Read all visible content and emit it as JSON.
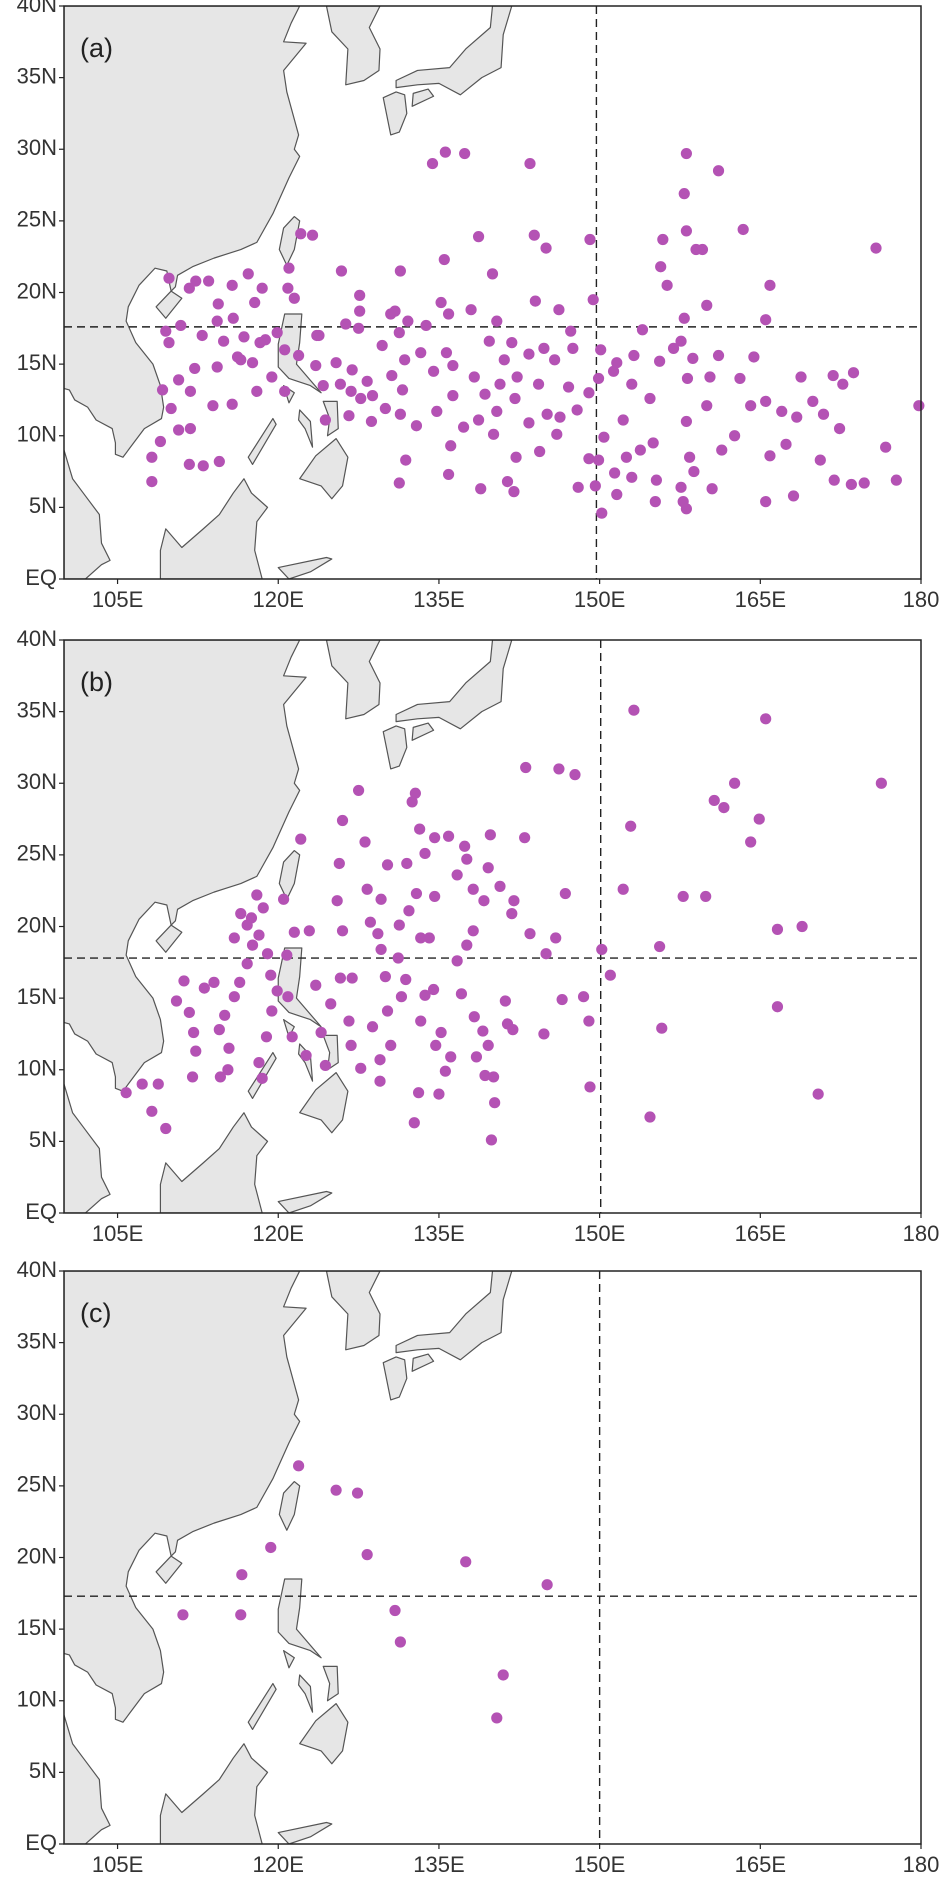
{
  "chart_data": [
    {
      "type": "scatter",
      "title": "(a)",
      "color": "#b452b4",
      "xlim": [
        100,
        180
      ],
      "ylim": [
        0,
        40
      ],
      "xticks": [
        {
          "value": 105,
          "label": "105E"
        },
        {
          "value": 120,
          "label": "120E"
        },
        {
          "value": 135,
          "label": "135E"
        },
        {
          "value": 150,
          "label": "150E"
        },
        {
          "value": 165,
          "label": "165E"
        },
        180
      ],
      "yticks": [
        {
          "value": 0,
          "label": "EQ"
        },
        {
          "value": 5,
          "label": "5N"
        },
        {
          "value": 10,
          "label": "10N"
        },
        {
          "value": 15,
          "label": "15N"
        },
        {
          "value": 20,
          "label": "20N"
        },
        {
          "value": 25,
          "label": "25N"
        },
        {
          "value": 30,
          "label": "30N"
        },
        {
          "value": 35,
          "label": "35N"
        },
        {
          "value": 40,
          "label": "40N"
        }
      ],
      "hline": 17.6,
      "vline": 149.7,
      "x": [
        108.2,
        108.2,
        109.0,
        110.7,
        111.8,
        111.7,
        113.0,
        114.5,
        110.0,
        109.2,
        111.8,
        113.9,
        115.7,
        118.0,
        120.6,
        119.4,
        117.6,
        116.2,
        114.3,
        112.2,
        110.7,
        109.8,
        109.5,
        110.9,
        112.9,
        114.9,
        116.8,
        118.8,
        120.6,
        121.9,
        123.5,
        125.4,
        126.9,
        128.3,
        130.6,
        131.6,
        130.0,
        131.4,
        128.7,
        126.6,
        124.4,
        126.8,
        128.8,
        125.8,
        124.2,
        123.6,
        126.3,
        127.6,
        130.5,
        132.1,
        133.8,
        135.9,
        138.0,
        135.2,
        131.3,
        129.7,
        131.8,
        133.3,
        135.7,
        134.5,
        136.3,
        138.3,
        136.3,
        134.8,
        132.9,
        131.9,
        131.3,
        136.1,
        135.9,
        138.7,
        139.3,
        140.7,
        141.1,
        139.7,
        140.4,
        141.8,
        143.4,
        144.8,
        145.8,
        144.3,
        142.1,
        140.4,
        140.1,
        138.9,
        141.4,
        142.2,
        143.4,
        145.1,
        147.1,
        147.9,
        146.0,
        149.0,
        149.9,
        151.6,
        153.2,
        155.6,
        156.9,
        153.0,
        154.7,
        152.2,
        150.4,
        149.0,
        148.0,
        149.6,
        150.2,
        151.6,
        153.0,
        152.5,
        155.0,
        155.3,
        155.2,
        157.6,
        158.4,
        158.1,
        160.0,
        158.2,
        160.3,
        157.6,
        158.7,
        161.1,
        163.1,
        164.4,
        164.1,
        162.6,
        161.4,
        160.5,
        157.8,
        165.5,
        167.0,
        165.9,
        167.4,
        168.4,
        169.9,
        170.9,
        171.8,
        173.7,
        172.4,
        170.6,
        171.9,
        173.5,
        174.7,
        176.7,
        177.7,
        179.8,
        172.7,
        168.8,
        168.1,
        165.5,
        158.8,
        160.0,
        165.5,
        157.9,
        156.3,
        155.7,
        155.9,
        158.1,
        159.0,
        159.6,
        157.9,
        158.1,
        161.1,
        163.4,
        165.9,
        175.8,
        154.0,
        150.1,
        147.3,
        146.2,
        144.0,
        140.0,
        138.7,
        135.5,
        131.4,
        130.9,
        127.6,
        125.9,
        123.2,
        122.1,
        121.0,
        120.9,
        118.5,
        117.2,
        115.7,
        113.5,
        112.3,
        117.8,
        114.4,
        115.8,
        114.3,
        111.7,
        109.8,
        135.6,
        137.4,
        134.4,
        143.5,
        143.9,
        145.0,
        149.1,
        149.4,
        147.5,
        142.3,
        137.3,
        144.4,
        146.3,
        142.0,
        149.9,
        151.3,
        153.8,
        151.4,
        127.7,
        127.5,
        123.8,
        121.5,
        116.5,
        118.3,
        119.9,
        158.1
      ],
      "y": [
        6.8,
        8.5,
        9.6,
        10.4,
        10.5,
        8.0,
        7.9,
        8.2,
        11.9,
        13.2,
        13.1,
        12.1,
        12.2,
        13.1,
        13.1,
        14.1,
        15.1,
        15.5,
        14.8,
        14.7,
        13.9,
        16.5,
        17.3,
        17.7,
        17.0,
        16.6,
        16.9,
        16.7,
        16.0,
        15.6,
        14.9,
        15.1,
        14.6,
        13.8,
        14.2,
        13.2,
        11.9,
        11.5,
        11.0,
        11.4,
        11.1,
        13.1,
        12.8,
        13.6,
        13.5,
        17.0,
        17.8,
        18.7,
        18.5,
        18.0,
        17.7,
        18.5,
        18.8,
        19.3,
        17.2,
        16.3,
        15.3,
        15.8,
        15.8,
        14.5,
        14.9,
        14.1,
        12.8,
        11.7,
        10.7,
        8.3,
        6.7,
        9.3,
        7.3,
        11.1,
        12.9,
        13.6,
        15.3,
        16.6,
        18.0,
        16.5,
        15.7,
        16.1,
        15.3,
        13.6,
        12.6,
        11.7,
        10.1,
        6.3,
        6.8,
        8.5,
        10.9,
        11.5,
        13.4,
        11.8,
        10.1,
        13.0,
        14.0,
        15.1,
        15.6,
        15.2,
        16.1,
        13.6,
        12.6,
        11.1,
        9.9,
        8.4,
        6.4,
        6.5,
        4.6,
        5.9,
        7.1,
        8.5,
        9.5,
        6.9,
        5.4,
        6.4,
        8.5,
        11.0,
        12.1,
        14.0,
        14.1,
        16.6,
        15.4,
        15.6,
        14.0,
        15.5,
        12.1,
        10.0,
        9.0,
        6.3,
        5.4,
        12.4,
        11.7,
        8.6,
        9.4,
        11.3,
        12.4,
        11.5,
        14.2,
        14.4,
        10.5,
        8.3,
        6.9,
        6.6,
        6.7,
        9.2,
        6.9,
        12.1,
        13.6,
        14.1,
        5.8,
        5.4,
        7.5,
        19.1,
        18.1,
        18.2,
        20.5,
        21.8,
        23.7,
        24.3,
        23.0,
        23.0,
        26.9,
        29.7,
        28.5,
        24.4,
        20.5,
        23.1,
        17.4,
        16.0,
        17.3,
        18.8,
        19.4,
        21.3,
        23.9,
        22.3,
        21.5,
        18.7,
        19.8,
        21.5,
        24.0,
        24.1,
        21.7,
        20.3,
        20.3,
        21.3,
        20.5,
        20.8,
        20.8,
        19.3,
        19.2,
        18.2,
        18.0,
        20.3,
        21.0,
        29.8,
        29.7,
        29.0,
        29.0,
        24.0,
        23.1,
        23.7,
        19.5,
        16.1,
        14.1,
        10.6,
        8.9,
        11.3,
        6.1,
        8.3,
        14.5,
        9.0,
        7.4,
        12.6,
        17.5,
        17.0,
        19.6,
        15.3,
        16.5,
        17.2,
        4.9
      ]
    },
    {
      "type": "scatter",
      "title": "(b)",
      "color": "#b452b4",
      "xlim": [
        100,
        180
      ],
      "ylim": [
        0,
        40
      ],
      "xticks": [
        {
          "value": 105,
          "label": "105E"
        },
        {
          "value": 120,
          "label": "120E"
        },
        {
          "value": 135,
          "label": "135E"
        },
        {
          "value": 150,
          "label": "150E"
        },
        {
          "value": 165,
          "label": "165E"
        },
        180
      ],
      "yticks": [
        {
          "value": 0,
          "label": "EQ"
        },
        {
          "value": 5,
          "label": "5N"
        },
        {
          "value": 10,
          "label": "10N"
        },
        {
          "value": 15,
          "label": "15N"
        },
        {
          "value": 20,
          "label": "20N"
        },
        {
          "value": 25,
          "label": "25N"
        },
        {
          "value": 30,
          "label": "30N"
        },
        {
          "value": 35,
          "label": "35N"
        },
        {
          "value": 40,
          "label": "40N"
        }
      ],
      "hline": 17.8,
      "vline": 150.1,
      "x": [
        105.8,
        107.3,
        108.8,
        108.2,
        109.5,
        110.5,
        111.2,
        111.7,
        112.1,
        112.3,
        112.0,
        113.1,
        114.0,
        114.5,
        114.6,
        115.3,
        115.4,
        115.0,
        115.9,
        116.4,
        117.1,
        117.6,
        118.2,
        118.6,
        118.0,
        117.1,
        115.9,
        116.5,
        117.5,
        119.0,
        119.3,
        119.4,
        118.9,
        118.2,
        118.5,
        119.9,
        120.8,
        121.5,
        122.9,
        120.5,
        122.1,
        120.9,
        121.3,
        122.6,
        123.5,
        124.0,
        124.4,
        124.9,
        125.8,
        126.9,
        126.6,
        126.8,
        127.7,
        126.0,
        125.5,
        125.7,
        126.0,
        127.5,
        128.1,
        128.3,
        128.6,
        129.6,
        130.0,
        128.8,
        129.5,
        129.5,
        130.2,
        130.5,
        131.5,
        131.9,
        131.2,
        131.3,
        132.2,
        132.9,
        133.2,
        132.0,
        130.2,
        129.6,
        129.3,
        132.8,
        132.5,
        133.7,
        134.6,
        134.6,
        133.3,
        134.1,
        134.5,
        133.7,
        133.3,
        134.7,
        135.2,
        135.6,
        136.1,
        135.0,
        133.1,
        132.7,
        135.9,
        137.4,
        137.6,
        136.7,
        138.2,
        139.2,
        138.2,
        137.6,
        136.7,
        137.1,
        138.3,
        139.1,
        139.6,
        138.5,
        139.3,
        140.1,
        139.9,
        140.2,
        141.2,
        141.4,
        141.9,
        139.6,
        140.7,
        142.0,
        139.8,
        143.0,
        143.5,
        143.1,
        146.2,
        147.7,
        146.8,
        145.0,
        144.8,
        146.5,
        148.5,
        149.0,
        149.1,
        150.2,
        151.0,
        152.2,
        152.9,
        153.2,
        155.8,
        154.7,
        155.6,
        157.8,
        159.9,
        160.7,
        161.6,
        162.6,
        164.9,
        164.1,
        165.5,
        166.6,
        166.6,
        168.9,
        170.4,
        176.3,
        145.9,
        141.8
      ],
      "y": [
        8.4,
        9.0,
        9.0,
        7.1,
        5.9,
        14.8,
        16.2,
        14.0,
        12.6,
        11.3,
        9.5,
        15.7,
        16.1,
        12.8,
        9.5,
        10.0,
        11.5,
        13.8,
        15.1,
        16.1,
        17.4,
        18.7,
        19.4,
        21.3,
        22.2,
        20.1,
        19.2,
        20.9,
        20.6,
        18.1,
        16.6,
        14.1,
        12.3,
        10.5,
        9.4,
        15.5,
        18.0,
        19.6,
        19.7,
        21.9,
        26.1,
        15.1,
        12.3,
        11.0,
        15.9,
        12.6,
        10.3,
        14.6,
        16.4,
        16.4,
        13.4,
        11.7,
        10.1,
        19.7,
        21.8,
        24.4,
        27.4,
        29.5,
        25.9,
        22.6,
        20.3,
        18.4,
        16.5,
        13.0,
        10.7,
        9.2,
        14.1,
        11.7,
        15.1,
        16.3,
        17.8,
        20.1,
        21.1,
        22.3,
        26.8,
        24.4,
        24.3,
        21.9,
        19.5,
        29.3,
        28.7,
        25.1,
        26.2,
        22.1,
        19.2,
        19.2,
        15.6,
        15.2,
        13.4,
        11.7,
        12.6,
        9.9,
        10.9,
        8.3,
        8.4,
        6.3,
        26.3,
        25.6,
        24.7,
        23.6,
        22.6,
        21.8,
        19.7,
        18.7,
        17.6,
        15.3,
        13.7,
        12.7,
        11.7,
        10.9,
        9.6,
        9.5,
        5.1,
        7.7,
        14.8,
        13.2,
        12.8,
        24.1,
        22.8,
        21.8,
        26.4,
        26.2,
        19.5,
        31.1,
        31.0,
        30.6,
        22.3,
        18.1,
        12.5,
        14.9,
        15.1,
        13.4,
        8.8,
        18.4,
        16.6,
        22.6,
        27.0,
        35.1,
        12.9,
        6.7,
        18.6,
        22.1,
        22.1,
        28.8,
        28.3,
        30.0,
        27.5,
        25.9,
        34.5,
        19.8,
        14.4,
        20.0,
        8.3,
        30.0,
        19.2,
        20.9
      ]
    },
    {
      "type": "scatter",
      "title": "(c)",
      "color": "#b452b4",
      "xlim": [
        100,
        180
      ],
      "ylim": [
        0,
        40
      ],
      "xticks": [
        {
          "value": 105,
          "label": "105E"
        },
        {
          "value": 120,
          "label": "120E"
        },
        {
          "value": 135,
          "label": "135E"
        },
        {
          "value": 150,
          "label": "150E"
        },
        {
          "value": 165,
          "label": "165E"
        },
        180
      ],
      "yticks": [
        {
          "value": 0,
          "label": "EQ"
        },
        {
          "value": 5,
          "label": "5N"
        },
        {
          "value": 10,
          "label": "10N"
        },
        {
          "value": 15,
          "label": "15N"
        },
        {
          "value": 20,
          "label": "20N"
        },
        {
          "value": 25,
          "label": "25N"
        },
        {
          "value": 30,
          "label": "30N"
        },
        {
          "value": 35,
          "label": "35N"
        },
        {
          "value": 40,
          "label": "40N"
        }
      ],
      "hline": 17.3,
      "vline": 150.0,
      "x": [
        111.1,
        116.5,
        116.6,
        119.3,
        121.9,
        125.4,
        127.4,
        128.3,
        130.9,
        131.4,
        137.5,
        145.1,
        141.0,
        140.4
      ],
      "y": [
        16.0,
        16.0,
        18.8,
        20.7,
        26.4,
        24.7,
        24.5,
        20.2,
        16.3,
        14.1,
        19.7,
        18.1,
        11.8,
        8.8
      ]
    }
  ]
}
